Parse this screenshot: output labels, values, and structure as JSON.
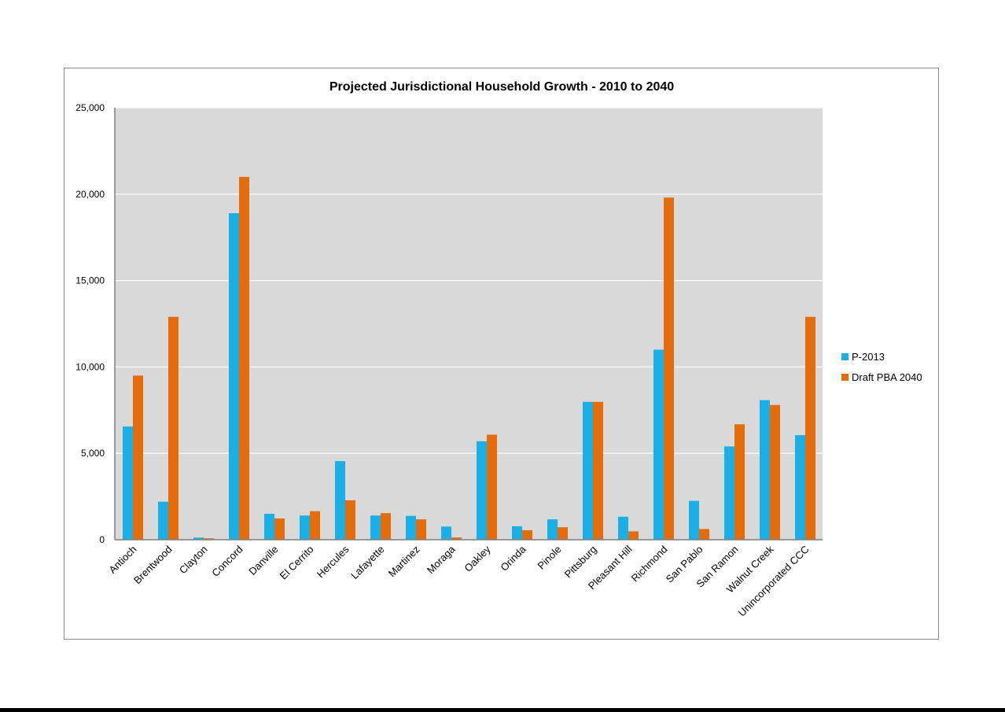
{
  "chart_data": {
    "type": "bar",
    "title": "Projected Jurisdictional Household Growth - 2010 to 2040",
    "xlabel": "",
    "ylabel": "",
    "ylim": [
      0,
      25000
    ],
    "yticks": [
      "0",
      "5,000",
      "10,000",
      "15,000",
      "20,000",
      "25,000"
    ],
    "ytick_values": [
      0,
      5000,
      10000,
      15000,
      20000,
      25000
    ],
    "grid": true,
    "legend_position": "right",
    "categories": [
      "Antioch",
      "Brentwood",
      "Clayton",
      "Concord",
      "Danville",
      "El Cerrito",
      "Hercules",
      "Lafayette",
      "Martinez",
      "Moraga",
      "Oakley",
      "Orinda",
      "Pinole",
      "Pittsburg",
      "Pleasant Hill",
      "Richmond",
      "San Pablo",
      "San Ramon",
      "Walnut Creek",
      "Unincorporated CCC"
    ],
    "series": [
      {
        "name": "P-2013",
        "color": "#1aafe6",
        "values": [
          6550,
          2200,
          120,
          18900,
          1500,
          1400,
          4550,
          1400,
          1380,
          760,
          5700,
          780,
          1180,
          7980,
          1330,
          11000,
          2250,
          5400,
          8080,
          6050
        ]
      },
      {
        "name": "Draft PBA 2040",
        "color": "#e46c0a",
        "values": [
          9500,
          12900,
          80,
          21000,
          1230,
          1650,
          2280,
          1540,
          1180,
          130,
          6080,
          550,
          720,
          7980,
          480,
          19800,
          620,
          6680,
          7800,
          12900
        ]
      }
    ]
  },
  "style": {
    "plot_background": "#d9d9d9",
    "gridline_color": "#ffffff",
    "axis_color": "#7f7f7f"
  }
}
